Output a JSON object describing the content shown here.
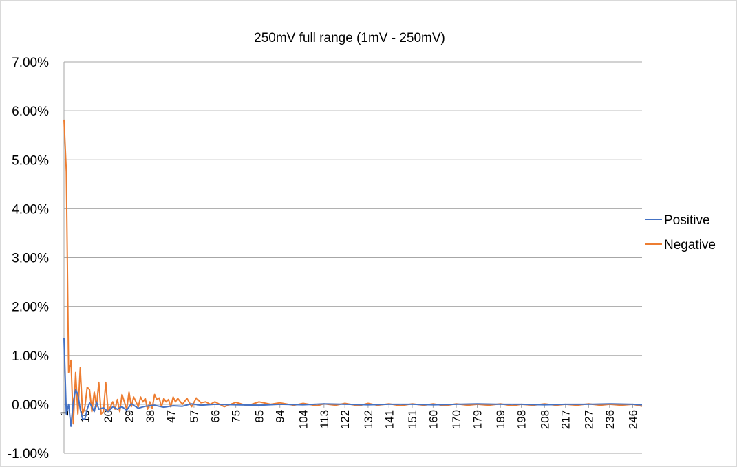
{
  "chart_data": {
    "type": "line",
    "title": "250mV full range (1mV - 250mV)",
    "xlabel": "",
    "ylabel": "",
    "ylim": [
      -0.01,
      0.07
    ],
    "y_ticks": [
      "7.00%",
      "6.00%",
      "5.00%",
      "4.00%",
      "3.00%",
      "2.00%",
      "1.00%",
      "0.00%",
      "-1.00%"
    ],
    "y_tick_values": [
      0.07,
      0.06,
      0.05,
      0.04,
      0.03,
      0.02,
      0.01,
      0.0,
      -0.01
    ],
    "x_ticks": [
      "1",
      "10",
      "20",
      "29",
      "38",
      "47",
      "57",
      "66",
      "75",
      "85",
      "94",
      "104",
      "113",
      "122",
      "132",
      "141",
      "151",
      "160",
      "170",
      "179",
      "189",
      "198",
      "208",
      "217",
      "227",
      "236",
      "246"
    ],
    "x_range": [
      1,
      250
    ],
    "grid": "horizontal",
    "legend_position": "right",
    "series": [
      {
        "name": "Positive",
        "color": "#4472c4",
        "x": [
          1,
          2,
          3,
          4,
          5,
          6,
          7,
          8,
          9,
          10,
          11,
          12,
          13,
          14,
          15,
          16,
          18,
          20,
          22,
          24,
          26,
          28,
          30,
          33,
          36,
          40,
          44,
          48,
          52,
          56,
          60,
          66,
          75,
          85,
          94,
          104,
          113,
          122,
          132,
          141,
          151,
          160,
          170,
          179,
          189,
          198,
          208,
          217,
          227,
          236,
          246,
          250
        ],
        "values": [
          0.0135,
          -0.002,
          0.0,
          -0.0045,
          0.0005,
          0.003,
          0.002,
          -0.001,
          -0.003,
          -0.003,
          -0.001,
          0.0003,
          -0.0005,
          -0.0015,
          0.0005,
          -0.001,
          -0.0007,
          -0.0015,
          -0.0005,
          -0.001,
          -0.0005,
          -0.0012,
          0.0001,
          -0.0008,
          -0.0004,
          -0.0002,
          -0.0006,
          -0.0003,
          -0.0004,
          0.0001,
          -0.0002,
          0.0,
          -0.0001,
          -0.0002,
          0.0,
          -0.0001,
          0.0001,
          0.0,
          -0.0001,
          0.0,
          0.0,
          -0.0001,
          0.0,
          0.0001,
          0.0,
          0.0,
          -0.0001,
          0.0,
          0.0,
          0.0001,
          0.0,
          -0.0001
        ]
      },
      {
        "name": "Negative",
        "color": "#ed7d31",
        "x": [
          1,
          2,
          3,
          4,
          5,
          6,
          7,
          8,
          9,
          10,
          11,
          12,
          13,
          14,
          15,
          16,
          17,
          18,
          19,
          20,
          21,
          22,
          23,
          24,
          25,
          26,
          27,
          28,
          29,
          30,
          31,
          32,
          33,
          34,
          35,
          36,
          37,
          38,
          39,
          40,
          41,
          42,
          43,
          44,
          45,
          46,
          47,
          48,
          49,
          50,
          52,
          54,
          56,
          58,
          60,
          62,
          64,
          66,
          70,
          75,
          80,
          85,
          90,
          94,
          100,
          104,
          110,
          113,
          118,
          122,
          128,
          132,
          136,
          141,
          146,
          151,
          156,
          160,
          165,
          170,
          175,
          179,
          184,
          189,
          194,
          198,
          203,
          208,
          213,
          217,
          222,
          227,
          232,
          236,
          241,
          246,
          250
        ],
        "values": [
          0.0582,
          0.0475,
          0.0065,
          0.009,
          -0.004,
          0.0065,
          -0.002,
          0.0075,
          -0.002,
          -0.0005,
          0.0035,
          0.003,
          -0.0015,
          0.0025,
          -0.0005,
          0.0045,
          -0.002,
          -0.0015,
          0.0045,
          -0.0015,
          -0.0005,
          0.0005,
          -0.001,
          0.001,
          -0.0015,
          0.002,
          0.0005,
          -0.001,
          0.0025,
          -0.0005,
          0.0015,
          0.0005,
          -0.0005,
          0.0015,
          0.0005,
          0.0012,
          -0.001,
          0.0005,
          -0.0008,
          0.002,
          0.001,
          0.0013,
          -0.0005,
          0.0012,
          0.0005,
          0.001,
          -0.0005,
          0.0015,
          0.0005,
          0.0012,
          0.0,
          0.0012,
          -0.0005,
          0.0013,
          0.0003,
          0.0005,
          0.0,
          0.0005,
          -0.0005,
          0.0004,
          -0.0003,
          0.0005,
          0.0,
          0.0003,
          -0.0002,
          0.0002,
          -0.0003,
          0.0001,
          -0.0002,
          0.0002,
          -0.0003,
          0.0002,
          -0.0002,
          0.0001,
          -0.0003,
          0.0001,
          -0.0002,
          0.0001,
          -0.0003,
          0.0001,
          -0.0002,
          0.0,
          -0.0002,
          0.0001,
          -0.0003,
          0.0,
          -0.0002,
          0.0001,
          -0.0002,
          0.0,
          -0.0002,
          0.0001,
          -0.0002,
          0.0,
          -0.0002,
          0.0,
          -0.0004
        ]
      }
    ]
  }
}
